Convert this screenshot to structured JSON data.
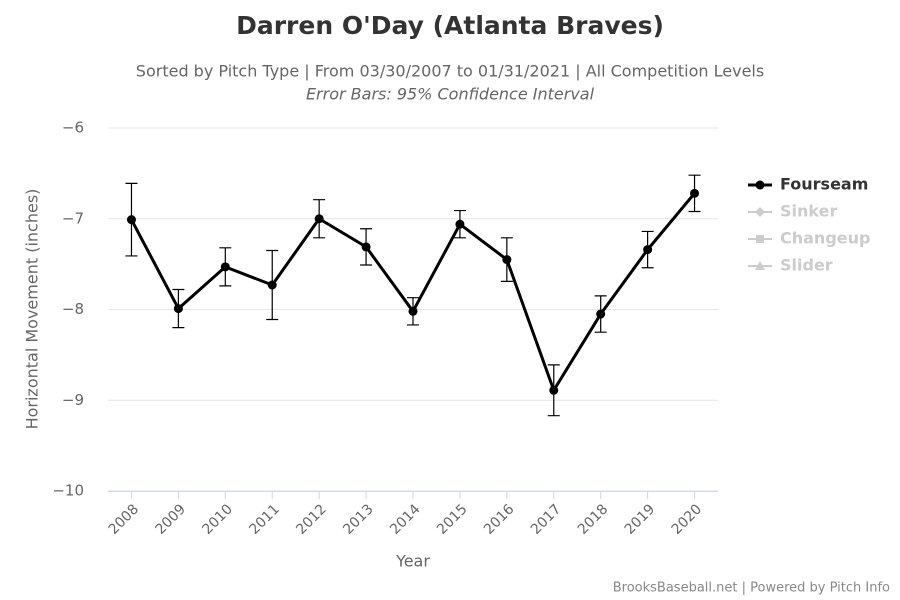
{
  "chart_data": {
    "type": "line",
    "title": "Darren O'Day (Atlanta Braves)",
    "subtitle": "Sorted by Pitch Type | From 03/30/2007 to 01/31/2021 | All Competition Levels",
    "annotation": "Error Bars: 95% Confidence Interval",
    "credits": "BrooksBaseball.net | Powered by Pitch Info",
    "xlabel": "Year",
    "ylabel": "Horizontal Movement (inches)",
    "categories": [
      "2008",
      "2009",
      "2010",
      "2011",
      "2012",
      "2013",
      "2014",
      "2015",
      "2016",
      "2017",
      "2018",
      "2019",
      "2020"
    ],
    "series": [
      {
        "name": "Fourseam",
        "color": "#000000",
        "marker": "circle",
        "values": [
          -7.01,
          -7.99,
          -7.53,
          -7.73,
          -7.0,
          -7.31,
          -8.02,
          -7.06,
          -7.45,
          -8.89,
          -8.05,
          -7.34,
          -6.72
        ],
        "errors": [
          0.4,
          0.21,
          0.21,
          0.38,
          0.21,
          0.2,
          0.15,
          0.15,
          0.24,
          0.28,
          0.2,
          0.2,
          0.2
        ]
      },
      {
        "name": "Sinker",
        "color": "#cccccc",
        "marker": "diamond",
        "visible": false,
        "values": [
          null,
          null,
          null,
          null,
          null,
          null,
          null,
          null,
          null,
          null,
          null,
          null,
          null
        ]
      },
      {
        "name": "Changeup",
        "color": "#cccccc",
        "marker": "square",
        "visible": false,
        "values": [
          null,
          null,
          null,
          null,
          null,
          null,
          null,
          null,
          null,
          null,
          null,
          null,
          null
        ]
      },
      {
        "name": "Slider",
        "color": "#cccccc",
        "marker": "triangle",
        "visible": false,
        "values": [
          null,
          null,
          null,
          null,
          null,
          null,
          null,
          null,
          null,
          null,
          null,
          null,
          null
        ]
      }
    ],
    "ylim": [
      -10,
      -6
    ],
    "yticks": [
      {
        "value": -10,
        "label": "−10"
      },
      {
        "value": -9,
        "label": "−9"
      },
      {
        "value": -8,
        "label": "−8"
      },
      {
        "value": -7,
        "label": "−7"
      },
      {
        "value": -6,
        "label": "−6"
      }
    ],
    "grid": true,
    "legend": "right"
  }
}
